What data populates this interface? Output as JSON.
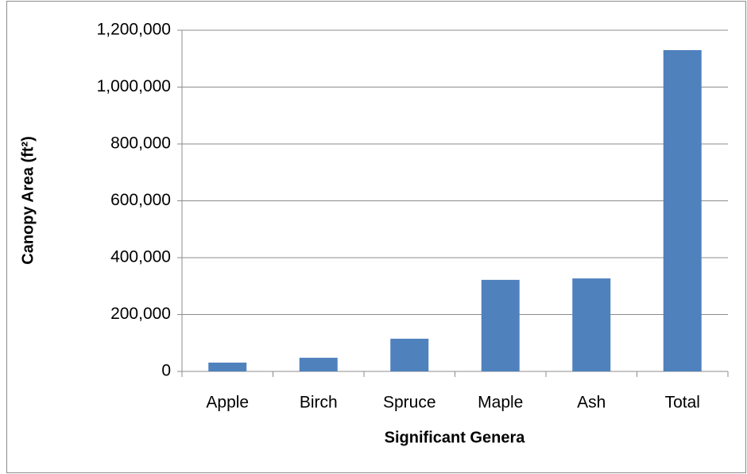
{
  "chart_data": {
    "type": "bar",
    "x_label": "Significant Genera",
    "y_label": "Canopy Area (ft²)",
    "categories": [
      "Apple",
      "Birch",
      "Spruce",
      "Maple",
      "Ash",
      "Total"
    ],
    "values": [
      31000,
      48000,
      115000,
      322000,
      327000,
      1130000
    ],
    "color": "#4f81bd",
    "ylim": [
      0,
      1200000
    ],
    "yticks": [
      0,
      {
        "value": 200000,
        "label": "200,000"
      },
      {
        "value": 400000,
        "label": "400,000"
      },
      {
        "value": 600000,
        "label": "600,000"
      },
      {
        "value": 800000,
        "label": "800,000"
      },
      {
        "value": 1000000,
        "label": "1,000,000"
      },
      {
        "value": 1200000,
        "label": "1,200,000"
      }
    ],
    "grid": true
  }
}
